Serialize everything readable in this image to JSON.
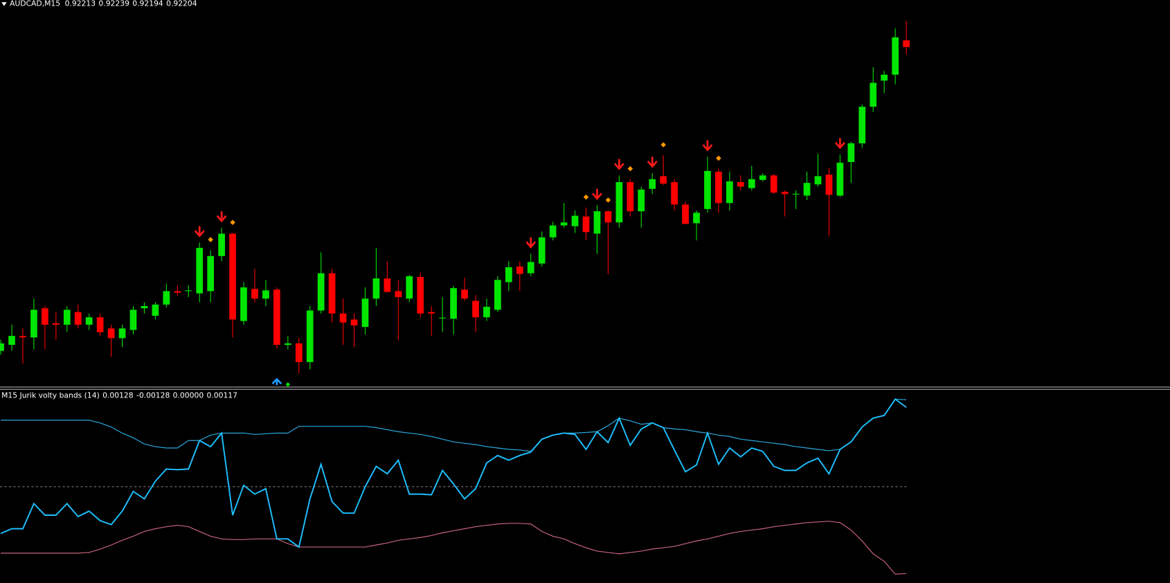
{
  "chart_data": [
    {
      "type": "candlestick",
      "title": "AUDCAD,M15",
      "ylim": [
        0.91749,
        0.92267
      ],
      "up_color": "#00e600",
      "down_color": "#ff0000",
      "open": [
        0.91797,
        0.91805,
        0.91817,
        0.91815,
        0.91854,
        0.91834,
        0.91832,
        0.91849,
        0.91832,
        0.91842,
        0.91827,
        0.91814,
        0.91825,
        0.91854,
        0.91844,
        0.91859,
        0.91877,
        0.91877,
        0.91874,
        0.91877,
        0.91924,
        0.91954,
        0.91837,
        0.9188,
        0.91867,
        0.91879,
        0.91805,
        0.91807,
        0.91782,
        0.91851,
        0.91901,
        0.91847,
        0.91839,
        0.91829,
        0.91867,
        0.91894,
        0.91877,
        0.91867,
        0.91896,
        0.91849,
        0.91841,
        0.9184,
        0.91879,
        0.91864,
        0.91842,
        0.91852,
        0.91889,
        0.9191,
        0.91901,
        0.91914,
        0.91949,
        0.91965,
        0.91964,
        0.91977,
        0.91954,
        0.91984,
        0.91969,
        0.92023,
        0.91984,
        0.92014,
        0.92031,
        0.92023,
        0.91993,
        0.91968,
        0.91987,
        0.92037,
        0.91995,
        0.92023,
        0.92015,
        0.92026,
        0.92032,
        0.9201,
        0.92007,
        0.92005,
        0.9202,
        0.92033,
        0.92005,
        0.9205,
        0.92075,
        0.92124,
        0.92159,
        0.92167,
        0.92213
      ],
      "high": [
        0.91812,
        0.91832,
        0.91827,
        0.91867,
        0.91857,
        0.91849,
        0.91857,
        0.91859,
        0.91847,
        0.91847,
        0.91832,
        0.91832,
        0.91857,
        0.91862,
        0.91862,
        0.91887,
        0.91885,
        0.91885,
        0.91942,
        0.91932,
        0.91962,
        0.91955,
        0.91889,
        0.91907,
        0.91892,
        0.91882,
        0.91817,
        0.91814,
        0.91857,
        0.91929,
        0.91907,
        0.91867,
        0.91847,
        0.91882,
        0.91935,
        0.91917,
        0.91892,
        0.91899,
        0.91902,
        0.91857,
        0.91869,
        0.91884,
        0.91895,
        0.91872,
        0.91867,
        0.91897,
        0.91917,
        0.91917,
        0.91927,
        0.91957,
        0.9197,
        0.91995,
        0.91985,
        0.91989,
        0.91992,
        0.91985,
        0.92032,
        0.92027,
        0.92017,
        0.92035,
        0.92059,
        0.92027,
        0.91997,
        0.91985,
        0.92057,
        0.92041,
        0.92037,
        0.92032,
        0.92045,
        0.92035,
        0.92034,
        0.92012,
        0.92012,
        0.92037,
        0.92061,
        0.92042,
        0.9206,
        0.92077,
        0.92127,
        0.92177,
        0.92172,
        0.92229,
        0.92239
      ],
      "low": [
        0.91792,
        0.91797,
        0.9178,
        0.91799,
        0.91799,
        0.91812,
        0.91822,
        0.91827,
        0.91825,
        0.91817,
        0.91789,
        0.91802,
        0.91819,
        0.91847,
        0.91839,
        0.91855,
        0.91871,
        0.91869,
        0.91862,
        0.91862,
        0.91917,
        0.91815,
        0.91832,
        0.91862,
        0.91857,
        0.918,
        0.91799,
        0.91767,
        0.91772,
        0.91847,
        0.91835,
        0.91805,
        0.91802,
        0.91819,
        0.91857,
        0.91875,
        0.91812,
        0.91862,
        0.91842,
        0.91817,
        0.91822,
        0.91819,
        0.91864,
        0.91822,
        0.91837,
        0.91849,
        0.91877,
        0.91877,
        0.91897,
        0.9191,
        0.91945,
        0.91962,
        0.91955,
        0.91945,
        0.91927,
        0.919,
        0.91962,
        0.91977,
        0.91962,
        0.92007,
        0.92019,
        0.91985,
        0.91967,
        0.91945,
        0.91982,
        0.91982,
        0.91985,
        0.92012,
        0.92012,
        0.92024,
        0.92007,
        0.91977,
        0.91987,
        0.91999,
        0.92017,
        0.91951,
        0.92003,
        0.92022,
        0.92069,
        0.92117,
        0.92142,
        0.92154,
        0.92194
      ],
      "close": [
        0.91807,
        0.91817,
        0.91815,
        0.91852,
        0.91832,
        0.91832,
        0.91852,
        0.91832,
        0.91842,
        0.91822,
        0.91814,
        0.91827,
        0.91852,
        0.91857,
        0.91859,
        0.91877,
        0.91875,
        0.91878,
        0.91935,
        0.91924,
        0.91954,
        0.91839,
        0.91882,
        0.91867,
        0.91878,
        0.91805,
        0.91807,
        0.91782,
        0.91851,
        0.91901,
        0.91847,
        0.91835,
        0.91831,
        0.91867,
        0.91894,
        0.91876,
        0.91869,
        0.91897,
        0.91847,
        0.91847,
        0.91841,
        0.91881,
        0.91867,
        0.91842,
        0.91856,
        0.91892,
        0.91909,
        0.919,
        0.91916,
        0.91949,
        0.91965,
        0.91969,
        0.91978,
        0.91956,
        0.91984,
        0.91969,
        0.92023,
        0.91984,
        0.92013,
        0.92027,
        0.92021,
        0.91993,
        0.91967,
        0.91982,
        0.92038,
        0.91995,
        0.92024,
        0.92017,
        0.92027,
        0.92032,
        0.92009,
        0.92007,
        0.92007,
        0.92022,
        0.92031,
        0.92006,
        0.92049,
        0.92075,
        0.92124,
        0.92156,
        0.92167,
        0.92217,
        0.92204
      ],
      "sell_arrows": [
        18,
        20,
        48,
        54,
        56,
        59,
        64,
        76
      ],
      "sell_arrow_color": "#ff1a1a",
      "sell_diamonds": [
        19,
        21,
        53,
        55,
        57,
        60,
        65
      ],
      "sell_diamond_color": "#ff9900",
      "buy_arrows": [
        25
      ],
      "buy_arrow_color": "#1e9bff",
      "buy_diamonds": [
        26
      ],
      "buy_diamond_color": "#00e600"
    },
    {
      "type": "line",
      "title": "M15 Jurik volty bands (14)",
      "ylim": [
        -0.00142,
        0.00143
      ],
      "level": {
        "value": 0,
        "label": "0.00000"
      },
      "level_color": "#888888",
      "series": [
        {
          "color": "#2aa9e0",
          "values": [
            0.00098,
            0.00098,
            0.00098,
            0.00098,
            0.00098,
            0.00098,
            0.00098,
            0.00098,
            0.00098,
            0.00094,
            0.00088,
            0.00079,
            0.00072,
            0.00063,
            0.00059,
            0.00057,
            0.00057,
            0.00068,
            0.00068,
            0.00076,
            0.00079,
            0.00079,
            0.00079,
            0.00077,
            0.00078,
            0.00079,
            0.00079,
            0.00089,
            0.00089,
            0.00089,
            0.00089,
            0.00089,
            0.00089,
            0.00089,
            0.00087,
            0.00084,
            0.00081,
            0.00079,
            0.00077,
            0.00074,
            0.0007,
            0.00066,
            0.00064,
            0.00062,
            0.00059,
            0.00057,
            0.00055,
            0.00054,
            0.00052,
            0.0007,
            0.00076,
            0.00079,
            0.00079,
            0.0008,
            0.00081,
            0.0009,
            0.00101,
            0.00097,
            0.00092,
            0.00094,
            0.00087,
            0.00085,
            0.00084,
            0.00081,
            0.00079,
            0.00076,
            0.00074,
            0.0007,
            0.00068,
            0.00066,
            0.00064,
            0.00062,
            0.00059,
            0.00057,
            0.00055,
            0.00053,
            0.00055,
            0.00066,
            0.00088,
            0.00101,
            0.00105,
            0.00129,
            0.00128
          ]
        },
        {
          "color": "#c8647a",
          "values": [
            -0.00098,
            -0.00098,
            -0.00098,
            -0.00098,
            -0.00098,
            -0.00098,
            -0.00098,
            -0.00098,
            -0.00097,
            -0.00092,
            -0.00086,
            -0.00079,
            -0.00073,
            -0.00066,
            -0.00062,
            -0.00059,
            -0.00057,
            -0.00059,
            -0.00066,
            -0.00073,
            -0.00077,
            -0.00078,
            -0.00078,
            -0.00077,
            -0.00077,
            -0.00077,
            -0.00084,
            -0.00089,
            -0.00089,
            -0.00089,
            -0.00089,
            -0.00089,
            -0.00089,
            -0.00089,
            -0.00086,
            -0.00083,
            -0.00079,
            -0.00077,
            -0.00075,
            -0.00072,
            -0.00068,
            -0.00065,
            -0.00062,
            -0.00059,
            -0.00057,
            -0.00055,
            -0.00054,
            -0.00054,
            -0.00055,
            -0.00066,
            -0.00073,
            -0.00077,
            -0.00084,
            -0.0009,
            -0.00095,
            -0.00097,
            -0.00099,
            -0.00097,
            -0.00095,
            -0.00092,
            -0.0009,
            -0.00088,
            -0.00084,
            -0.0008,
            -0.00077,
            -0.00073,
            -0.00069,
            -0.00066,
            -0.00064,
            -0.00062,
            -0.00059,
            -0.00057,
            -0.00055,
            -0.00053,
            -0.00052,
            -0.00051,
            -0.00053,
            -0.00064,
            -0.0008,
            -0.00099,
            -0.0011,
            -0.00129,
            -0.00128
          ]
        },
        {
          "color": "#1ec0ff",
          "values": [
            -0.00069,
            -0.00062,
            -0.00062,
            -0.00025,
            -0.00042,
            -0.00042,
            -0.00025,
            -0.00044,
            -0.00036,
            -0.0005,
            -0.00056,
            -0.00036,
            -7e-05,
            -0.00018,
            8e-05,
            0.00026,
            0.00025,
            0.00026,
            0.00068,
            0.00059,
            0.00079,
            -0.00042,
            2e-05,
            -0.00011,
            -3e-05,
            -0.00077,
            -0.00077,
            -0.00089,
            -0.00018,
            0.00033,
            -0.00022,
            -0.00039,
            -0.00039,
            0,
            0.0003,
            0.00019,
            0.00039,
            -0.00011,
            -0.00011,
            -0.00012,
            0.00024,
            4e-05,
            -0.00018,
            -3e-05,
            0.00035,
            0.00046,
            0.00039,
            0.00046,
            0.00051,
            0.0007,
            0.00076,
            0.00079,
            0.00077,
            0.00055,
            0.00081,
            0.00065,
            0.00101,
            0.00061,
            0.00085,
            0.00094,
            0.00087,
            0.00054,
            0.00022,
            0.00032,
            0.00079,
            0.00033,
            0.00057,
            0.00044,
            0.00057,
            0.00052,
            0.0003,
            0.00024,
            0.00024,
            0.00035,
            0.00042,
            0.00019,
            0.00055,
            0.00066,
            0.00088,
            0.00101,
            0.00105,
            0.00129,
            0.00117
          ]
        }
      ]
    }
  ]
}
